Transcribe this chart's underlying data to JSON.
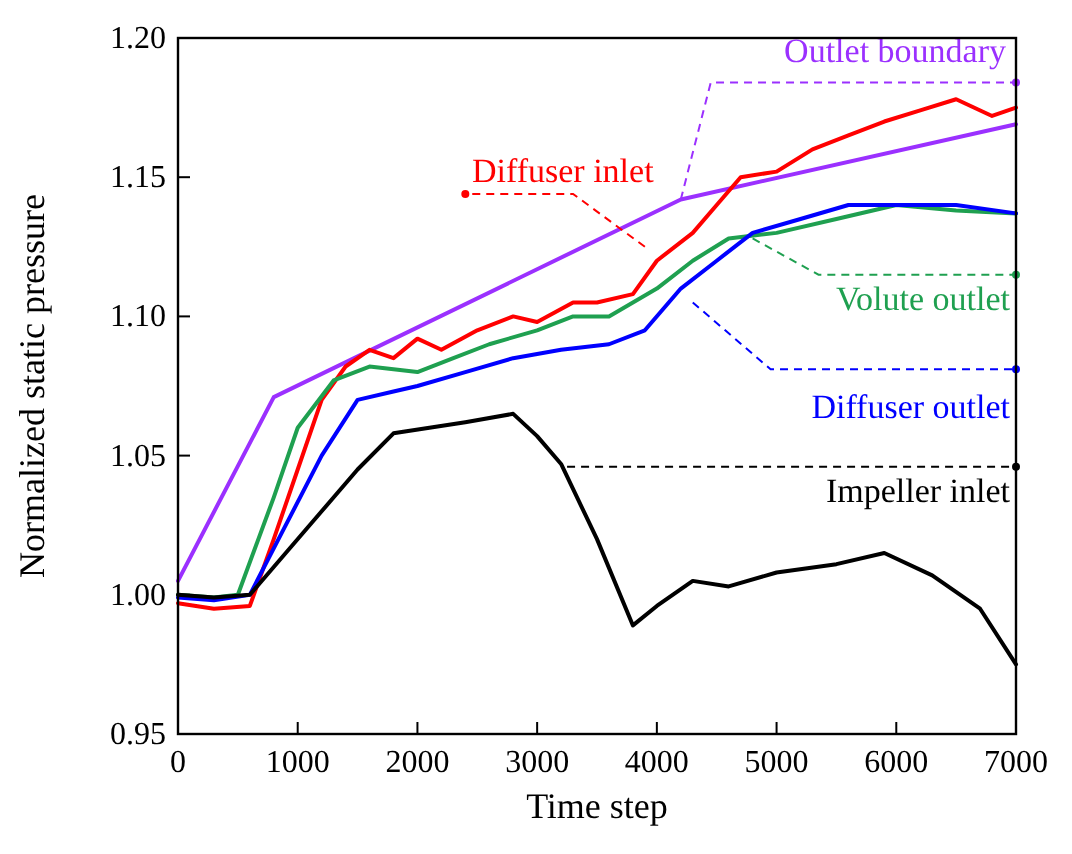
{
  "chart_data": {
    "type": "line",
    "xlabel": "Time step",
    "ylabel": "Normalized static pressure",
    "xlim": [
      0,
      7000
    ],
    "xticks": [
      0,
      1000,
      2000,
      3000,
      4000,
      5000,
      6000,
      7000
    ],
    "ylim": [
      0.95,
      1.2
    ],
    "yticks": [
      0.95,
      {
        "value": 1.0,
        "label": "1.00"
      },
      1.05,
      {
        "value": 1.1,
        "label": "1.10"
      },
      1.15,
      {
        "value": 1.2,
        "label": "1.20"
      }
    ],
    "grid": false,
    "legend": "right",
    "marker": "none",
    "line_style": "solid",
    "series": [
      {
        "name": "Outlet boundary",
        "color": "#9b30ff",
        "x": [
          0,
          800,
          4200,
          7000
        ],
        "values": [
          1.005,
          1.071,
          1.142,
          1.169
        ]
      },
      {
        "name": "Diffuser inlet",
        "color": "#ff0000",
        "x": [
          0,
          300,
          600,
          800,
          1000,
          1200,
          1400,
          1600,
          1800,
          2000,
          2200,
          2500,
          2800,
          3000,
          3300,
          3500,
          3800,
          4000,
          4300,
          4500,
          4700,
          5000,
          5300,
          5600,
          5900,
          6200,
          6500,
          6800,
          7000
        ],
        "values": [
          0.997,
          0.995,
          0.996,
          1.02,
          1.045,
          1.07,
          1.082,
          1.088,
          1.085,
          1.092,
          1.088,
          1.095,
          1.1,
          1.098,
          1.105,
          1.105,
          1.108,
          1.12,
          1.13,
          1.14,
          1.15,
          1.152,
          1.16,
          1.165,
          1.17,
          1.174,
          1.178,
          1.172,
          1.175
        ]
      },
      {
        "name": "Volute outlet",
        "color": "#1fa050",
        "x": [
          0,
          300,
          500,
          800,
          1000,
          1300,
          1600,
          2000,
          2300,
          2600,
          3000,
          3300,
          3600,
          4000,
          4300,
          4600,
          5000,
          5500,
          6000,
          6500,
          7000
        ],
        "values": [
          1.0,
          0.999,
          1.0,
          1.035,
          1.06,
          1.077,
          1.082,
          1.08,
          1.085,
          1.09,
          1.095,
          1.1,
          1.1,
          1.11,
          1.12,
          1.128,
          1.13,
          1.135,
          1.14,
          1.138,
          1.137
        ]
      },
      {
        "name": "Diffuser outlet",
        "color": "#0000ff",
        "x": [
          0,
          300,
          600,
          900,
          1200,
          1500,
          1800,
          2000,
          2400,
          2800,
          3200,
          3600,
          3900,
          4200,
          4500,
          4800,
          5200,
          5600,
          6000,
          6500,
          7000
        ],
        "values": [
          0.999,
          0.998,
          1.0,
          1.025,
          1.05,
          1.07,
          1.073,
          1.075,
          1.08,
          1.085,
          1.088,
          1.09,
          1.095,
          1.11,
          1.12,
          1.13,
          1.135,
          1.14,
          1.14,
          1.14,
          1.137
        ]
      },
      {
        "name": "Impeller inlet",
        "color": "#000000",
        "x": [
          0,
          300,
          600,
          900,
          1200,
          1500,
          1800,
          2100,
          2400,
          2800,
          3000,
          3200,
          3500,
          3800,
          4000,
          4300,
          4600,
          5000,
          5500,
          5900,
          6300,
          6700,
          7000
        ],
        "values": [
          1.0,
          0.999,
          1.0,
          1.015,
          1.03,
          1.045,
          1.058,
          1.06,
          1.062,
          1.065,
          1.057,
          1.047,
          1.02,
          0.989,
          0.996,
          1.005,
          1.003,
          1.008,
          1.011,
          1.015,
          1.007,
          0.995,
          0.975
        ]
      }
    ]
  }
}
